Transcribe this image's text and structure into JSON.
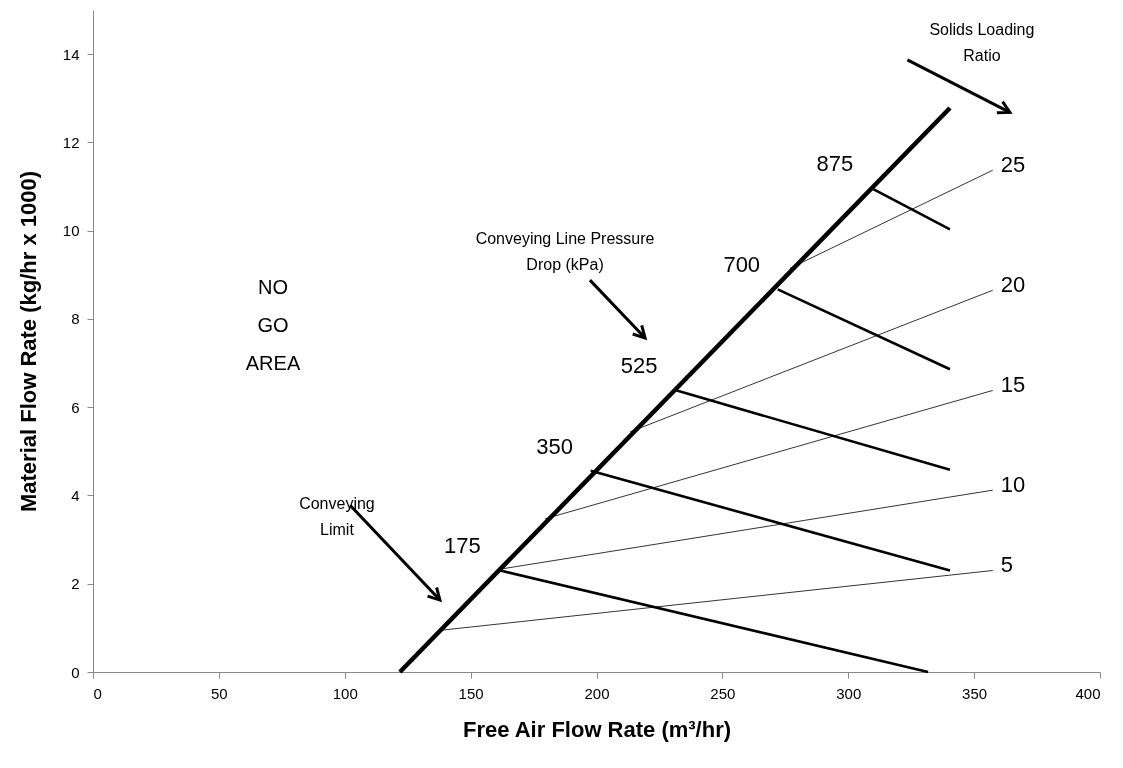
{
  "chart_data": {
    "type": "line",
    "xlabel": "Free Air Flow Rate (m³/hr)",
    "ylabel": "Material Flow Rate (kg/hr x 1000)",
    "xlim": [
      0,
      400
    ],
    "xticks": [
      0,
      50,
      100,
      150,
      200,
      250,
      300,
      350,
      400
    ],
    "ylim": [
      0,
      15
    ],
    "yticks": [
      0,
      2,
      4,
      6,
      8,
      10,
      12,
      14
    ],
    "grid": false,
    "marker": "none",
    "line_style": "solid",
    "series": [
      {
        "color": "#000000",
        "x": [
          121.9,
          340.4
        ],
        "values": [
          0,
          12.78
        ]
      },
      {
        "name": "5",
        "color": "#000000",
        "x": [
          138.9,
          357.4
        ],
        "values": [
          0.95,
          2.3
        ]
      },
      {
        "name": "10",
        "color": "#000000",
        "x": [
          161.7,
          357.4
        ],
        "values": [
          2.33,
          4.12
        ]
      },
      {
        "name": "15",
        "color": "#000000",
        "x": [
          179.5,
          357.4
        ],
        "values": [
          3.47,
          6.38
        ]
      },
      {
        "name": "20",
        "color": "#000000",
        "x": [
          213.3,
          357.4
        ],
        "values": [
          5.44,
          8.65
        ]
      },
      {
        "name": "25",
        "color": "#000000",
        "x": [
          276.9,
          357.4
        ],
        "values": [
          9.15,
          11.37
        ]
      },
      {
        "name": "175",
        "color": "#000000",
        "x": [
          161.0,
          331.7
        ],
        "values": [
          2.31,
          0
        ]
      },
      {
        "name": "350",
        "color": "#000000",
        "x": [
          197.7,
          340.4
        ],
        "values": [
          4.56,
          2.3
        ]
      },
      {
        "name": "525",
        "color": "#000000",
        "x": [
          231.2,
          340.4
        ],
        "values": [
          6.39,
          4.58
        ]
      },
      {
        "name": "700",
        "color": "#000000",
        "x": [
          272.0,
          340.4
        ],
        "values": [
          8.67,
          6.86
        ]
      },
      {
        "name": "875",
        "color": "#000000",
        "x": [
          309.0,
          340.4
        ],
        "values": [
          10.97,
          10.03
        ]
      }
    ],
    "annotations": [
      "NO\nGO\nAREA",
      "Conveying\nLimit",
      "Conveying Line Pressure\nDrop (kPa)",
      "Solids Loading\nRatio"
    ]
  }
}
